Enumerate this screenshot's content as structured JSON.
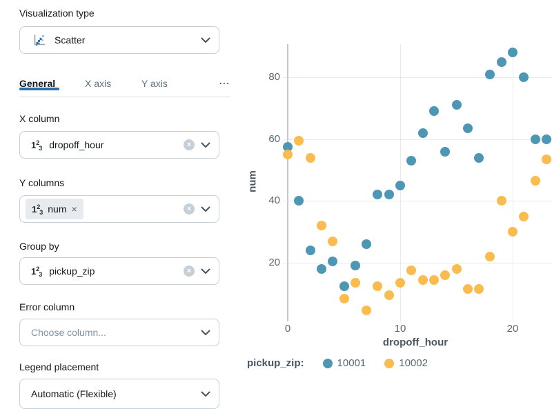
{
  "panel": {
    "viz_type": {
      "label": "Visualization type",
      "value": "Scatter"
    },
    "tabs": [
      {
        "label": "General",
        "active": true
      },
      {
        "label": "X axis",
        "active": false
      },
      {
        "label": "Y axis",
        "active": false
      }
    ],
    "tabs_more": "⋯",
    "fields": {
      "x_column": {
        "label": "X column",
        "value": "dropoff_hour"
      },
      "y_columns": {
        "label": "Y columns",
        "chip": "num"
      },
      "group_by": {
        "label": "Group by",
        "value": "pickup_zip"
      },
      "error_column": {
        "label": "Error column",
        "placeholder": "Choose column..."
      },
      "legend_placement": {
        "label": "Legend placement",
        "value": "Automatic (Flexible)"
      }
    }
  },
  "icons": {
    "numeric": {
      "one": "1",
      "two": "2",
      "three": "3"
    },
    "clear": "×",
    "dismiss": "×"
  },
  "colors": {
    "accent_blue": "#2272B4",
    "series_blue": "#4D97B5",
    "series_yellow": "#FBBC4F",
    "grid": "#E9EAEB",
    "border": "#C3CFD9"
  },
  "chart_data": {
    "type": "scatter",
    "xlabel": "dropoff_hour",
    "ylabel": "num",
    "group_label": "pickup_zip:",
    "x": [
      0,
      1,
      2,
      3,
      4,
      5,
      6,
      7,
      8,
      9,
      10,
      11,
      12,
      13,
      14,
      15,
      16,
      17,
      18,
      19,
      20,
      21,
      22,
      23
    ],
    "series": [
      {
        "name": "10001",
        "color": "#4D97B5",
        "values": [
          57.5,
          40,
          24,
          18,
          20.5,
          12.5,
          19,
          26,
          42,
          42,
          45,
          53,
          62,
          69,
          56,
          71,
          63.5,
          54,
          81,
          85,
          88,
          80,
          60,
          60
        ]
      },
      {
        "name": "10002",
        "color": "#FBBC4F",
        "values": [
          55,
          59.5,
          54,
          32,
          27,
          8.5,
          13.5,
          4.5,
          12.5,
          9.5,
          13.5,
          17.5,
          14.5,
          14.5,
          16,
          18,
          11.5,
          11.5,
          22,
          40,
          30,
          35,
          46.5,
          53.5
        ]
      }
    ],
    "x_ticks": [
      0,
      10,
      20
    ],
    "y_ticks": [
      20,
      40,
      60,
      80
    ],
    "xlim": [
      -0.5,
      23.5
    ],
    "ylim": [
      0,
      93
    ],
    "grid": true,
    "legend_position": "bottom"
  }
}
